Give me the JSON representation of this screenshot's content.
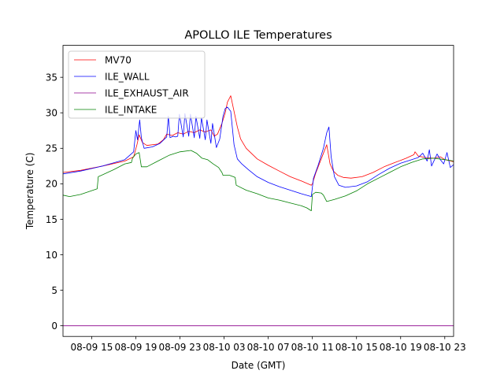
{
  "chart_data": {
    "type": "line",
    "title": "APOLLO ILE Temperatures",
    "xlabel": "Date (GMT)",
    "ylabel": "Temperature (C)",
    "xlim": [
      12.4,
      47.8
    ],
    "ylim": [
      -1.5,
      39.5
    ],
    "grid": false,
    "legend_position": "top-left",
    "x_unit": "hours since 08-09 00:00 GMT",
    "x_ticks": [
      {
        "value": 15,
        "label": "08-09 15"
      },
      {
        "value": 19,
        "label": "08-09 19"
      },
      {
        "value": 23,
        "label": "08-09 23"
      },
      {
        "value": 27,
        "label": "08-10 03"
      },
      {
        "value": 31,
        "label": "08-10 07"
      },
      {
        "value": 35,
        "label": "08-10 11"
      },
      {
        "value": 39,
        "label": "08-10 15"
      },
      {
        "value": 43,
        "label": "08-10 19"
      },
      {
        "value": 47,
        "label": "08-10 23"
      }
    ],
    "y_ticks": [
      {
        "value": 0,
        "label": "0"
      },
      {
        "value": 5,
        "label": "5"
      },
      {
        "value": 10,
        "label": "10"
      },
      {
        "value": 15,
        "label": "15"
      },
      {
        "value": 20,
        "label": "20"
      },
      {
        "value": 25,
        "label": "25"
      },
      {
        "value": 30,
        "label": "30"
      },
      {
        "value": 35,
        "label": "35"
      }
    ],
    "series": [
      {
        "name": "MV70",
        "color": "#ff0000",
        "x": [
          12.4,
          14,
          16,
          18,
          18.8,
          19.1,
          19.3,
          19.6,
          20,
          21,
          21.5,
          21.8,
          22.3,
          22.8,
          23.3,
          23.8,
          24.3,
          24.8,
          25.3,
          25.8,
          26.1,
          26.4,
          26.8,
          27.1,
          27.3,
          27.6,
          27.9,
          28.2,
          28.5,
          29,
          30,
          31,
          32,
          33,
          34,
          34.9,
          35,
          35.3,
          35.8,
          36.3,
          36.6,
          36.9,
          37.3,
          37.8,
          38.5,
          39.5,
          40.5,
          41.5,
          42.5,
          43.5,
          44.2,
          44.3,
          44.6,
          45.2,
          46,
          46.6,
          47,
          47.3,
          47.8
        ],
        "y": [
          21.6,
          21.9,
          22.5,
          23.2,
          23.8,
          25.5,
          26.9,
          25.8,
          25.4,
          25.6,
          26.2,
          27,
          26.8,
          27.2,
          27,
          27.4,
          27.2,
          27.6,
          27.3,
          27.6,
          26.7,
          27,
          28.5,
          30,
          31.5,
          32.4,
          30.2,
          28,
          26.3,
          25,
          23.5,
          22.6,
          21.8,
          21,
          20.4,
          19.8,
          20,
          21.5,
          23.5,
          25.5,
          22.8,
          21.8,
          21.2,
          20.9,
          20.8,
          21,
          21.6,
          22.4,
          23,
          23.6,
          24.1,
          24.5,
          23.9,
          23.7,
          23.6,
          23.8,
          23.4,
          23.3,
          23.1
        ]
      },
      {
        "name": "ILE_WALL",
        "color": "#0000ff",
        "x": [
          12.4,
          14,
          16,
          18,
          18.8,
          19,
          19.15,
          19.35,
          19.5,
          19.75,
          20.5,
          21.2,
          21.6,
          21.8,
          21.95,
          22.1,
          22.4,
          22.6,
          22.8,
          22.95,
          23.3,
          23.45,
          23.8,
          23.95,
          24.3,
          24.45,
          24.8,
          24.95,
          25.3,
          25.45,
          25.8,
          25.95,
          26.3,
          26.6,
          26.9,
          27.1,
          27.3,
          27.6,
          27.9,
          28.2,
          28.6,
          29.2,
          30,
          31,
          32,
          33,
          34,
          34.9,
          35.1,
          35.5,
          36,
          36.3,
          36.5,
          36.7,
          37,
          37.4,
          38,
          39,
          40,
          41,
          42,
          43,
          44,
          44.6,
          45,
          45.4,
          45.6,
          45.8,
          46.1,
          46.3,
          46.6,
          46.9,
          47.2,
          47.5,
          47.8
        ],
        "y": [
          21.4,
          21.8,
          22.5,
          23.4,
          24.5,
          27.5,
          26.2,
          29,
          26.5,
          25,
          25.2,
          25.7,
          26.3,
          26.6,
          29.5,
          26.5,
          26.7,
          26.6,
          26.7,
          29.8,
          26.6,
          29.9,
          26.7,
          29.8,
          26.5,
          29.5,
          26.4,
          29.3,
          26.2,
          29,
          25.7,
          28.5,
          25.1,
          26.3,
          29.5,
          30.6,
          30.8,
          30.2,
          25.5,
          23.5,
          22.8,
          22,
          21,
          20.2,
          19.6,
          19.1,
          18.6,
          18.2,
          20.8,
          22.5,
          25,
          27.2,
          28,
          23.8,
          21,
          19.8,
          19.5,
          19.7,
          20.3,
          21.3,
          22.2,
          22.9,
          23.4,
          23.7,
          24.3,
          23.2,
          24.8,
          22.5,
          23.5,
          24.2,
          23.4,
          22.8,
          24.4,
          22.3,
          22.7
        ]
      },
      {
        "name": "ILE_EXHAUST_AIR",
        "color": "#8b008b",
        "x": [
          12.4,
          47.8
        ],
        "y": [
          0,
          0
        ]
      },
      {
        "name": "ILE_INTAKE",
        "color": "#008000",
        "x": [
          12.4,
          13,
          14,
          15.5,
          15.6,
          17,
          18,
          18.6,
          18.7,
          19,
          19.3,
          19.5,
          20,
          21,
          22,
          23,
          24,
          24.5,
          25,
          25.5,
          26,
          26.5,
          26.8,
          26.9,
          27.5,
          28,
          28.1,
          29,
          30,
          31,
          32,
          33,
          34,
          34.5,
          34.9,
          35,
          35.3,
          35.8,
          36,
          36.3,
          37,
          38,
          39,
          40,
          41,
          42,
          43,
          44,
          45,
          46,
          46.5,
          47,
          47.8
        ],
        "y": [
          18.4,
          18.2,
          18.5,
          19.3,
          21,
          22,
          22.8,
          23,
          23.6,
          24.2,
          24.4,
          22.4,
          22.4,
          23.2,
          24,
          24.5,
          24.7,
          24.3,
          23.6,
          23.4,
          22.8,
          22.3,
          21.6,
          21.2,
          21.2,
          20.9,
          19.8,
          19.1,
          18.6,
          18,
          17.7,
          17.3,
          16.9,
          16.6,
          16.2,
          18.5,
          18.8,
          18.7,
          18.4,
          17.5,
          17.8,
          18.3,
          19,
          20,
          20.8,
          21.6,
          22.4,
          23,
          23.5,
          23.6,
          23.5,
          23.4,
          23.2
        ]
      }
    ]
  }
}
